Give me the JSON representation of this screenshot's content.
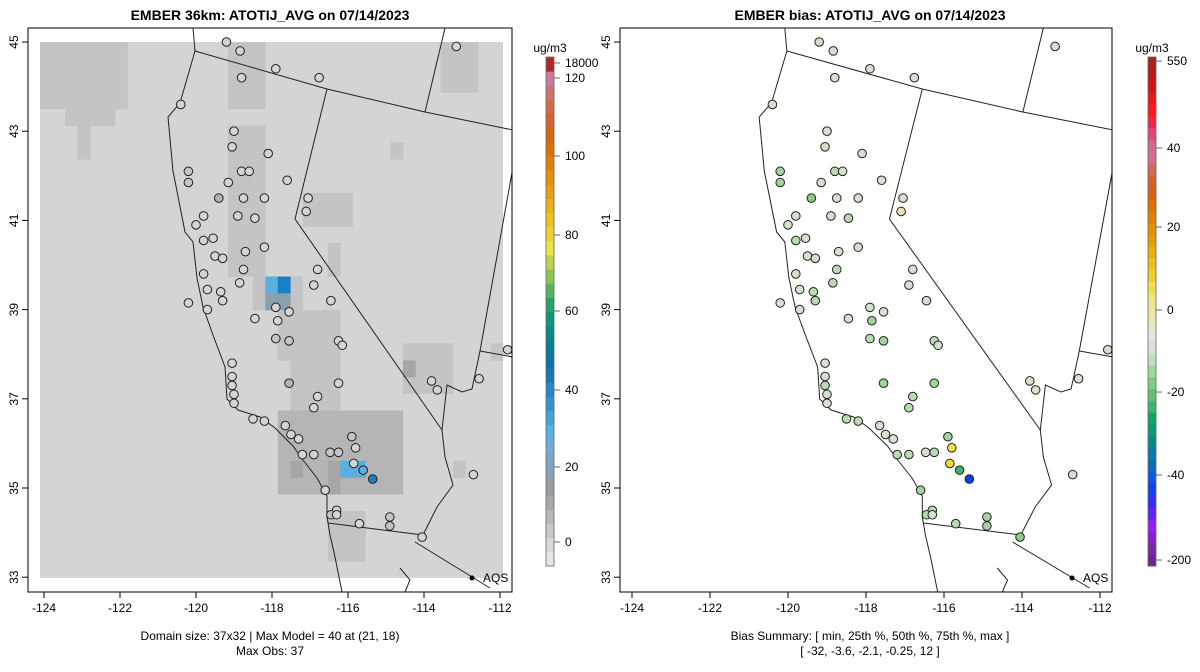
{
  "left_panel": {
    "title": "EMBER 36km: ATOTIJ_AVG on 07/14/2023",
    "footer_line1": "Domain size: 37x32 | Max Model = 40 at (21, 18)",
    "footer_line2": "Max Obs: 37",
    "colorbar_unit": "ug/m3",
    "colorbar_ticks": [
      "18000",
      "120",
      "100",
      "80",
      "60",
      "40",
      "20",
      "0"
    ],
    "colorbar_colors": [
      "#e6e6e6",
      "#d9d9d9",
      "#c8c8c8",
      "#b8b8b8",
      "#a8a8a8",
      "#999da2",
      "#8aa0b0",
      "#7ea6c4",
      "#6eaed8",
      "#58b0e4",
      "#44a2dc",
      "#3592d0",
      "#2a86cc",
      "#1a76b8",
      "#0a74a8",
      "#087f94",
      "#088a86",
      "#0a9878",
      "#20a468",
      "#54b460",
      "#8cc454",
      "#bcd444",
      "#ece440",
      "#f0d030",
      "#eec020",
      "#ecb018",
      "#e8a010",
      "#e49008",
      "#e08004",
      "#dc7004",
      "#d86410",
      "#d86030",
      "#d46848",
      "#d07070",
      "#cc78a0",
      "#b02828"
    ]
  },
  "right_panel": {
    "title": "EMBER bias: ATOTIJ_AVG on 07/14/2023",
    "footer_line1": "Bias Summary: [ min, 25th %, 50th %, 75th %, max ]",
    "footer_line2": "[ -32,   -3.6,   -2.1,   -0.25,   12 ]",
    "colorbar_unit": "ug/m3",
    "colorbar_ticks": [
      "550",
      "40",
      "20",
      "0",
      "-20",
      "-40",
      "-200"
    ],
    "colorbar_colors": [
      "#6a2890",
      "#7a28a8",
      "#8a20d0",
      "#9020f0",
      "#6020f8",
      "#3030f8",
      "#1040f0",
      "#1058d8",
      "#106ab8",
      "#0a7aa0",
      "#088a8c",
      "#0a9a78",
      "#10a468",
      "#40b470",
      "#60c070",
      "#80cc80",
      "#a0d8a0",
      "#c0e0c0",
      "#d8e4d4",
      "#e6e6e6",
      "#e8e6c0",
      "#ece8a0",
      "#eee680",
      "#f0e050",
      "#f0d030",
      "#eec020",
      "#eab010",
      "#e8a000",
      "#e49000",
      "#e08000",
      "#dc7000",
      "#d86010",
      "#d46030",
      "#d06858",
      "#d07090",
      "#d06898",
      "#e04870",
      "#f02848",
      "#ff1818",
      "#e81818",
      "#d01818",
      "#b81818",
      "#a82020"
    ]
  },
  "axes": {
    "lon_ticks": [
      "-124",
      "-122",
      "-120",
      "-118",
      "-116",
      "-114",
      "-112"
    ],
    "lat_ticks": [
      "33",
      "35",
      "37",
      "39",
      "41",
      "43",
      "45"
    ]
  },
  "legend": {
    "aqs_label": "AQS"
  },
  "chart_data": {
    "type": "map",
    "grid": {
      "cols": 37,
      "rows": 32,
      "background_value": 3
    },
    "model_cells": [
      [
        0,
        0,
        6,
        3,
        8
      ],
      [
        2,
        4,
        5,
        4,
        8
      ],
      [
        3,
        5,
        3,
        6,
        8
      ],
      [
        15,
        0,
        17,
        3,
        7
      ],
      [
        15,
        5,
        17,
        13,
        6
      ],
      [
        17,
        14,
        20,
        15,
        7
      ],
      [
        18,
        14,
        18,
        14,
        25
      ],
      [
        19,
        14,
        19,
        14,
        40
      ],
      [
        18,
        15,
        19,
        15,
        18
      ],
      [
        19,
        16,
        23,
        18,
        6
      ],
      [
        20,
        19,
        23,
        21,
        6
      ],
      [
        21,
        9,
        24,
        10,
        6
      ],
      [
        23,
        12,
        23,
        13,
        6
      ],
      [
        28,
        6,
        28,
        6,
        7
      ],
      [
        32,
        0,
        34,
        2,
        7
      ],
      [
        29,
        18,
        32,
        20,
        8
      ],
      [
        29,
        19,
        29,
        19,
        12
      ],
      [
        19,
        22,
        28,
        26,
        9
      ],
      [
        23,
        25,
        23,
        26,
        12
      ],
      [
        20,
        25,
        20,
        25,
        12
      ],
      [
        24,
        25,
        25,
        25,
        25
      ],
      [
        23,
        28,
        25,
        30,
        6
      ],
      [
        36,
        18,
        36,
        18,
        7
      ],
      [
        33,
        25,
        33,
        25,
        7
      ]
    ],
    "stations_lon_lat_obs_bias": [
      [
        -119.2,
        45.0,
        3,
        -1
      ],
      [
        -118.84,
        44.8,
        3,
        -1
      ],
      [
        -118.8,
        44.2,
        3,
        -2
      ],
      [
        -117.9,
        44.4,
        3,
        -1
      ],
      [
        -116.76,
        44.2,
        3,
        -1
      ],
      [
        -120.4,
        43.6,
        3,
        -1
      ],
      [
        -119.0,
        43.0,
        3,
        -2
      ],
      [
        -119.05,
        42.65,
        3,
        -1
      ],
      [
        -118.1,
        42.5,
        3,
        -1
      ],
      [
        -118.8,
        42.1,
        3,
        -3
      ],
      [
        -118.6,
        42.1,
        3,
        -2
      ],
      [
        -120.2,
        42.1,
        8,
        -6
      ],
      [
        -120.2,
        41.85,
        8,
        -5
      ],
      [
        -119.15,
        41.85,
        3,
        -1
      ],
      [
        -117.6,
        41.9,
        3,
        -1
      ],
      [
        -119.4,
        41.5,
        10,
        -7
      ],
      [
        -118.75,
        41.5,
        3,
        -2
      ],
      [
        -118.2,
        41.5,
        3,
        -1
      ],
      [
        -117.05,
        41.5,
        3,
        -1
      ],
      [
        -118.9,
        41.1,
        3,
        -2
      ],
      [
        -118.45,
        41.05,
        3,
        -3
      ],
      [
        -117.1,
        41.2,
        3,
        6
      ],
      [
        -119.8,
        41.1,
        3,
        -1
      ],
      [
        -118.2,
        40.4,
        3,
        -1
      ],
      [
        -118.7,
        40.3,
        3,
        -2
      ],
      [
        -119.55,
        40.6,
        3,
        -1
      ],
      [
        -119.5,
        40.2,
        3,
        -2
      ],
      [
        -118.75,
        39.9,
        3,
        -3
      ],
      [
        -118.85,
        39.6,
        3,
        -4
      ],
      [
        -116.8,
        39.9,
        3,
        -1
      ],
      [
        -116.9,
        39.55,
        3,
        -1
      ],
      [
        -119.35,
        39.4,
        3,
        -3
      ],
      [
        -119.7,
        39.0,
        3,
        -1
      ],
      [
        -119.3,
        39.2,
        3,
        -4
      ],
      [
        -118.45,
        38.8,
        3,
        -1
      ],
      [
        -117.9,
        39.05,
        3,
        -2
      ],
      [
        -117.55,
        38.95,
        3,
        -1
      ],
      [
        -117.85,
        38.75,
        3,
        -5
      ],
      [
        -117.9,
        38.35,
        8,
        -4
      ],
      [
        -117.55,
        38.3,
        8,
        -5
      ],
      [
        -116.45,
        39.2,
        3,
        -2
      ],
      [
        -116.25,
        38.3,
        3,
        -3
      ],
      [
        -116.15,
        38.2,
        3,
        -1
      ],
      [
        -119.05,
        37.8,
        3,
        -1
      ],
      [
        -119.05,
        37.5,
        3,
        -2
      ],
      [
        -119.05,
        37.3,
        3,
        -3
      ],
      [
        -119.0,
        37.1,
        3,
        -1
      ],
      [
        -119.0,
        36.9,
        3,
        -2
      ],
      [
        -117.55,
        37.35,
        10,
        -6
      ],
      [
        -116.25,
        37.35,
        3,
        -5
      ],
      [
        -116.9,
        36.8,
        3,
        -4
      ],
      [
        -116.8,
        37.05,
        3,
        -3
      ],
      [
        -118.5,
        36.55,
        3,
        -4
      ],
      [
        -118.2,
        36.5,
        3,
        -3
      ],
      [
        -117.65,
        36.4,
        3,
        -2
      ],
      [
        -117.5,
        36.2,
        3,
        -1
      ],
      [
        -117.3,
        36.1,
        3,
        -1
      ],
      [
        -116.47,
        35.8,
        8,
        -2
      ],
      [
        -116.25,
        35.8,
        8,
        -3
      ],
      [
        -116.9,
        35.75,
        3,
        -4
      ],
      [
        -117.2,
        35.75,
        3,
        -3
      ],
      [
        -115.9,
        36.15,
        8,
        -6
      ],
      [
        -115.8,
        35.9,
        3,
        10
      ],
      [
        -115.6,
        35.4,
        25,
        -14
      ],
      [
        -115.35,
        35.2,
        37,
        -32
      ],
      [
        -115.85,
        35.55,
        3,
        12
      ],
      [
        -116.6,
        34.95,
        3,
        -5
      ],
      [
        -116.3,
        34.5,
        3,
        -3
      ],
      [
        -116.45,
        34.4,
        8,
        -4
      ],
      [
        -116.3,
        34.4,
        3,
        -2
      ],
      [
        -115.7,
        34.2,
        3,
        -3
      ],
      [
        -114.9,
        34.35,
        8,
        -5
      ],
      [
        -114.9,
        34.15,
        8,
        -6
      ],
      [
        -114.05,
        33.9,
        3,
        -7
      ],
      [
        -113.8,
        37.4,
        3,
        -1
      ],
      [
        -113.65,
        37.2,
        3,
        -1
      ],
      [
        -112.55,
        37.45,
        3,
        -1
      ],
      [
        -111.8,
        38.1,
        3,
        -1
      ],
      [
        -112.7,
        35.3,
        3,
        -1
      ],
      [
        -113.15,
        44.9,
        3,
        -1
      ],
      [
        -120.0,
        40.9,
        3,
        -1
      ],
      [
        -119.8,
        40.55,
        3,
        -3
      ],
      [
        -119.8,
        39.8,
        3,
        -2
      ],
      [
        -119.7,
        39.45,
        3,
        -2
      ],
      [
        -119.3,
        40.15,
        3,
        -2
      ],
      [
        -120.2,
        39.15,
        3,
        -1
      ]
    ]
  }
}
